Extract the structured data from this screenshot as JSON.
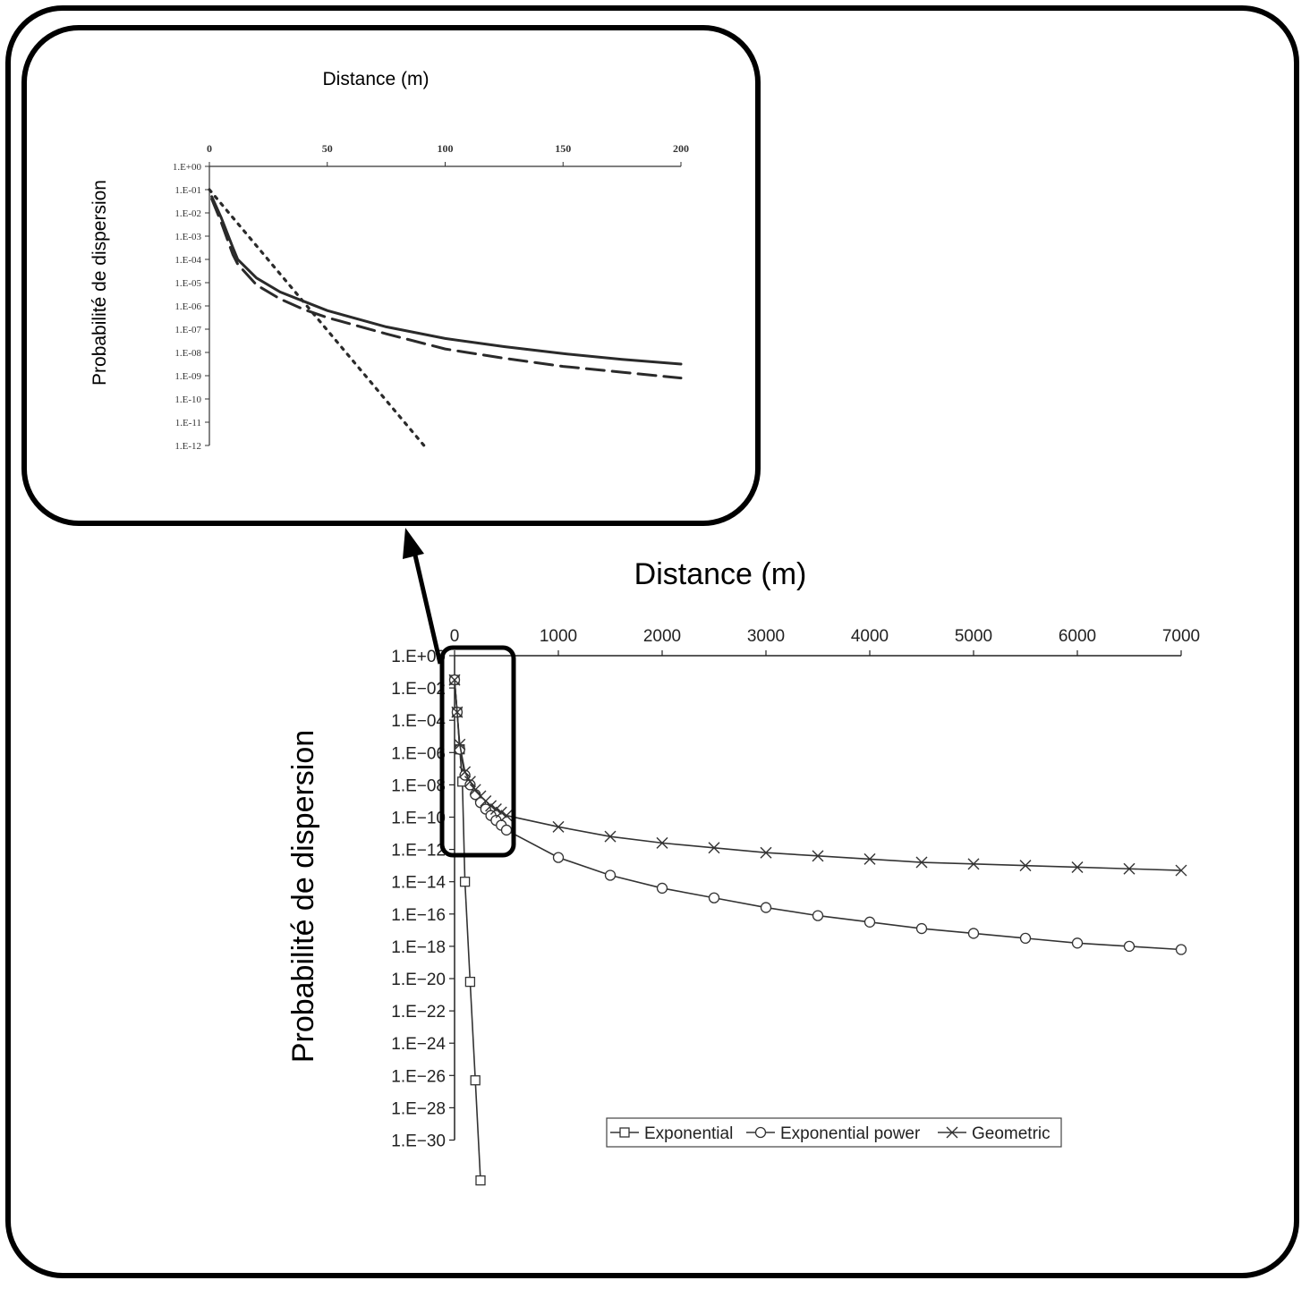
{
  "chart_data": [
    {
      "id": "main",
      "type": "line",
      "xlabel": "Distance (m)",
      "ylabel": "Probabilité de dispersion",
      "x_ticks": [
        0,
        1000,
        2000,
        3000,
        4000,
        5000,
        6000,
        7000
      ],
      "y_scale": "log10",
      "y_tick_exponents": [
        0,
        -2,
        -4,
        -6,
        -8,
        -10,
        -12,
        -14,
        -16,
        -18,
        -20,
        -22,
        -24,
        -26,
        -28,
        -30
      ],
      "y_tick_labels": [
        "1.E+00",
        "1.E−02",
        "1.E−04",
        "1.E−06",
        "1.E−08",
        "1.E−10",
        "1.E−12",
        "1.E−14",
        "1.E−16",
        "1.E−18",
        "1.E−20",
        "1.E−22",
        "1.E−24",
        "1.E−26",
        "1.E−28",
        "1.E−30"
      ],
      "xlim": [
        0,
        7000
      ],
      "ylim_exponent": [
        -33,
        0
      ],
      "legend": {
        "position": "bottom-center",
        "entries": [
          "Exponential",
          "Exponential power",
          "Geometric"
        ]
      },
      "series": [
        {
          "name": "Exponential",
          "marker": "square",
          "points": [
            [
              0,
              -1.5
            ],
            [
              25,
              -3.5
            ],
            [
              50,
              -5.8
            ],
            [
              75,
              -7.8
            ],
            [
              100,
              -14.0
            ],
            [
              150,
              -20.2
            ],
            [
              200,
              -26.3
            ],
            [
              250,
              -32.5
            ]
          ]
        },
        {
          "name": "Exponential power",
          "marker": "circle",
          "points": [
            [
              0,
              -1.5
            ],
            [
              25,
              -3.5
            ],
            [
              50,
              -5.8
            ],
            [
              100,
              -7.4
            ],
            [
              150,
              -8.0
            ],
            [
              200,
              -8.6
            ],
            [
              250,
              -9.1
            ],
            [
              300,
              -9.5
            ],
            [
              350,
              -9.9
            ],
            [
              400,
              -10.2
            ],
            [
              450,
              -10.5
            ],
            [
              500,
              -10.8
            ],
            [
              1000,
              -12.5
            ],
            [
              1500,
              -13.6
            ],
            [
              2000,
              -14.4
            ],
            [
              2500,
              -15.0
            ],
            [
              3000,
              -15.6
            ],
            [
              3500,
              -16.1
            ],
            [
              4000,
              -16.5
            ],
            [
              4500,
              -16.9
            ],
            [
              5000,
              -17.2
            ],
            [
              5500,
              -17.5
            ],
            [
              6000,
              -17.8
            ],
            [
              6500,
              -18.0
            ],
            [
              7000,
              -18.2
            ]
          ]
        },
        {
          "name": "Geometric",
          "marker": "x",
          "points": [
            [
              0,
              -1.5
            ],
            [
              25,
              -3.5
            ],
            [
              50,
              -5.5
            ],
            [
              100,
              -7.2
            ],
            [
              150,
              -7.8
            ],
            [
              200,
              -8.3
            ],
            [
              250,
              -8.7
            ],
            [
              300,
              -9.0
            ],
            [
              350,
              -9.3
            ],
            [
              400,
              -9.5
            ],
            [
              450,
              -9.7
            ],
            [
              500,
              -9.9
            ],
            [
              1000,
              -10.6
            ],
            [
              1500,
              -11.2
            ],
            [
              2000,
              -11.6
            ],
            [
              2500,
              -11.9
            ],
            [
              3000,
              -12.2
            ],
            [
              3500,
              -12.4
            ],
            [
              4000,
              -12.6
            ],
            [
              4500,
              -12.8
            ],
            [
              5000,
              -12.9
            ],
            [
              5500,
              -13.0
            ],
            [
              6000,
              -13.1
            ],
            [
              6500,
              -13.2
            ],
            [
              7000,
              -13.3
            ]
          ]
        }
      ]
    },
    {
      "id": "inset",
      "type": "line",
      "xlabel": "Distance (m)",
      "ylabel": "Probabilité de dispersion",
      "x_ticks": [
        0,
        50,
        100,
        150,
        200
      ],
      "y_scale": "log10",
      "y_tick_exponents": [
        0,
        -1,
        -2,
        -3,
        -4,
        -5,
        -6,
        -7,
        -8,
        -9,
        -10,
        -11,
        -12
      ],
      "y_tick_labels": [
        "1.E+00",
        "1.E-01",
        "1.E-02",
        "1.E-03",
        "1.E-04",
        "1.E-05",
        "1.E-06",
        "1.E-07",
        "1.E-08",
        "1.E-09",
        "1.E-10",
        "1.E-11",
        "1.E-12"
      ],
      "xlim": [
        0,
        200
      ],
      "ylim_exponent": [
        -12,
        0
      ],
      "series": [
        {
          "style": "solid",
          "points": [
            [
              1,
              -1.3
            ],
            [
              5,
              -2.2
            ],
            [
              10,
              -3.5
            ],
            [
              12,
              -4.0
            ],
            [
              20,
              -4.8
            ],
            [
              30,
              -5.4
            ],
            [
              40,
              -5.8
            ],
            [
              50,
              -6.2
            ],
            [
              75,
              -6.9
            ],
            [
              100,
              -7.4
            ],
            [
              125,
              -7.75
            ],
            [
              150,
              -8.05
            ],
            [
              175,
              -8.3
            ],
            [
              200,
              -8.5
            ]
          ]
        },
        {
          "style": "dashed",
          "points": [
            [
              1,
              -1.4
            ],
            [
              5,
              -2.4
            ],
            [
              10,
              -3.8
            ],
            [
              12,
              -4.2
            ],
            [
              20,
              -5.1
            ],
            [
              30,
              -5.7
            ],
            [
              40,
              -6.15
            ],
            [
              50,
              -6.5
            ],
            [
              75,
              -7.2
            ],
            [
              100,
              -7.85
            ],
            [
              125,
              -8.25
            ],
            [
              150,
              -8.6
            ],
            [
              175,
              -8.85
            ],
            [
              200,
              -9.1
            ]
          ]
        },
        {
          "style": "dotted",
          "points": [
            [
              0,
              -1.0
            ],
            [
              91,
              -12.0
            ]
          ]
        }
      ]
    }
  ]
}
